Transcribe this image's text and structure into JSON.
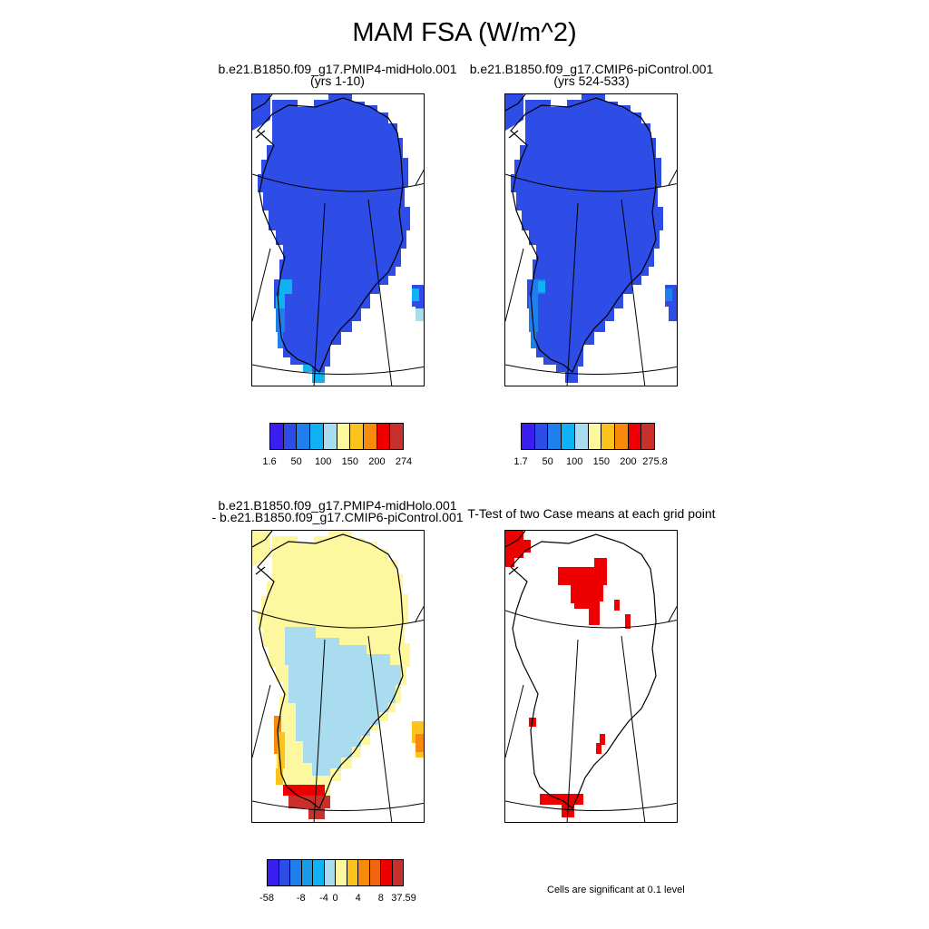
{
  "title": "MAM FSA (W/m^2)",
  "panels": {
    "p1": {
      "line1": "b.e21.B1850.f09_g17.PMIP4-midHolo.001",
      "line2": "(yrs 1-10)"
    },
    "p2": {
      "line1": "b.e21.B1850.f09_g17.CMIP6-piControl.001",
      "line2": "(yrs 524-533)"
    },
    "p3": {
      "line1": "b.e21.B1850.f09_g17.PMIP4-midHolo.001",
      "line2": "- b.e21.B1850.f09_g17.CMIP6-piControl.001"
    },
    "p4": {
      "line1": "T-Test of two Case means at each grid point"
    }
  },
  "colorbars": {
    "cb1": {
      "colors": [
        "#3a1ef0",
        "#2e4de6",
        "#1f7fec",
        "#0fb2f2",
        "#a9dcef",
        "#fdf7a0",
        "#fcc21e",
        "#f78a0b",
        "#ee0000",
        "#c8302c"
      ],
      "labels": [
        "1.6",
        "50",
        "100",
        "150",
        "200",
        "274"
      ]
    },
    "cb2": {
      "colors": [
        "#3a1ef0",
        "#2e4de6",
        "#1f7fec",
        "#0fb2f2",
        "#a9dcef",
        "#fdf7a0",
        "#fcc21e",
        "#f78a0b",
        "#ee0000",
        "#c8302c"
      ],
      "labels": [
        "1.7",
        "50",
        "100",
        "150",
        "200",
        "275.8"
      ]
    },
    "cb3": {
      "colors": [
        "#3a1ef0",
        "#2e4de6",
        "#1f7fec",
        "#1a9ae8",
        "#0fb2f2",
        "#a9dcef",
        "#fdf7a0",
        "#fcc21e",
        "#f78a0b",
        "#f26410",
        "#ee0000",
        "#c8302c"
      ],
      "labels": [
        "-58",
        "-8",
        "-4",
        "0",
        "4",
        "8",
        "37.59"
      ]
    }
  },
  "significance_note": "Cells are significant at 0.1 level",
  "colors": {
    "ice_blue": "#2e4de6",
    "light_blue": "#a9dcef",
    "pale_yellow": "#fdf7a0",
    "signif_red": "#ee0000"
  }
}
